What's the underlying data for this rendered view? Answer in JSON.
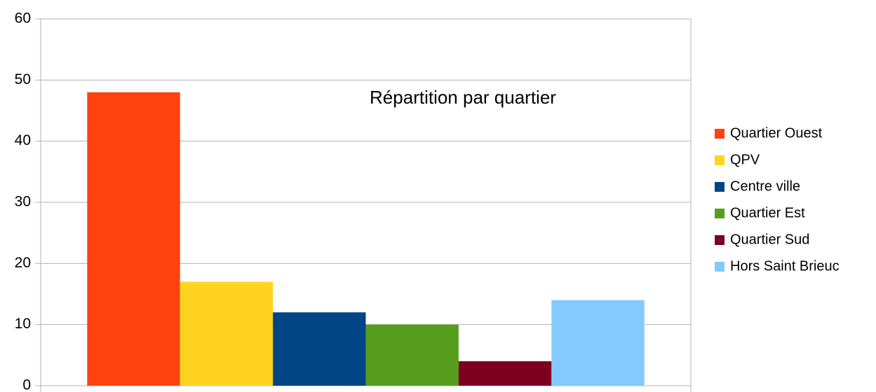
{
  "chart_data": {
    "type": "bar",
    "title": "Répartition par quartier",
    "categories": [
      null
    ],
    "series": [
      {
        "name": "Quartier Ouest",
        "color": "#ff420e",
        "values": [
          48
        ]
      },
      {
        "name": "QPV",
        "color": "#ffd320",
        "values": [
          17
        ]
      },
      {
        "name": "Centre ville",
        "color": "#004586",
        "values": [
          12
        ]
      },
      {
        "name": "Quartier Est",
        "color": "#579d1c",
        "values": [
          10
        ]
      },
      {
        "name": "Quartier Sud",
        "color": "#7e0021",
        "values": [
          4
        ]
      },
      {
        "name": "Hors Saint Brieuc",
        "color": "#83caff",
        "values": [
          14
        ]
      }
    ],
    "ylim": [
      0,
      60
    ],
    "yticks": [
      0,
      10,
      20,
      30,
      40,
      50,
      60
    ],
    "grid": true,
    "legend": "right"
  }
}
